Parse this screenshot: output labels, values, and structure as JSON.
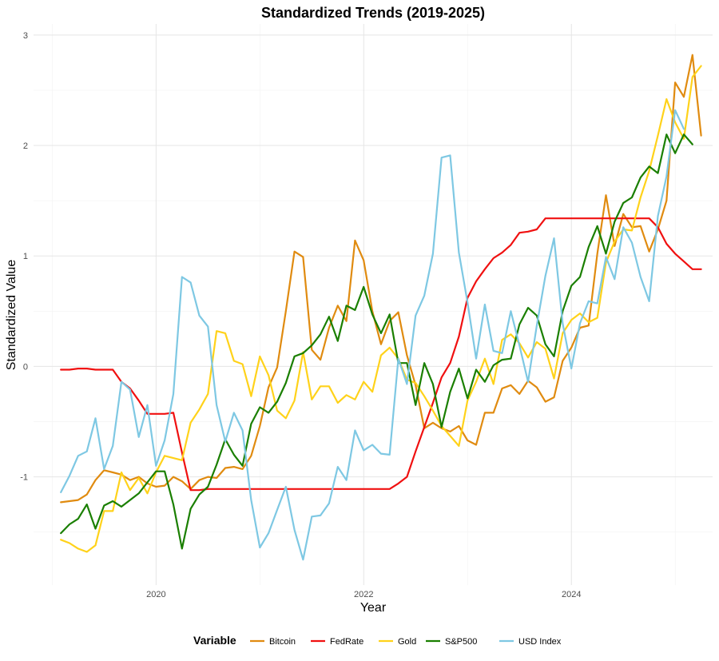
{
  "chart_data": {
    "type": "line",
    "title": "Standardized Trends (2019-2025)",
    "xlabel": "Year",
    "ylabel": "Standardized Value",
    "xlim": [
      2018.82,
      2025.36
    ],
    "ylim": [
      -1.98,
      3.1
    ],
    "x_ticks": [
      2020,
      2022,
      2024
    ],
    "x_tick_labels": [
      "2020",
      "2022",
      "2024"
    ],
    "y_ticks": [
      -1,
      0,
      1,
      2,
      3
    ],
    "y_tick_labels": [
      "-1",
      "0",
      "1",
      "2",
      "3"
    ],
    "grid": true,
    "legend": {
      "title": "Variable",
      "position": "bottom"
    },
    "x_start": 2019.083,
    "x_step": 0.08333,
    "series": [
      {
        "name": "Bitcoin",
        "color": "#E08B10",
        "values": [
          -1.23,
          -1.22,
          -1.21,
          -1.16,
          -1.03,
          -0.94,
          -0.96,
          -0.98,
          -1.03,
          -1.0,
          -1.06,
          -1.09,
          -1.08,
          -1.0,
          -1.04,
          -1.11,
          -1.03,
          -1.0,
          -1.01,
          -0.92,
          -0.91,
          -0.93,
          -0.81,
          -0.54,
          -0.19,
          -0.01,
          0.5,
          1.04,
          0.99,
          0.15,
          0.06,
          0.35,
          0.55,
          0.41,
          1.14,
          0.96,
          0.5,
          0.2,
          0.41,
          0.49,
          0.1,
          -0.17,
          -0.56,
          -0.51,
          -0.56,
          -0.59,
          -0.54,
          -0.67,
          -0.71,
          -0.42,
          -0.42,
          -0.2,
          -0.17,
          -0.25,
          -0.13,
          -0.19,
          -0.32,
          -0.28,
          0.05,
          0.17,
          0.35,
          0.37,
          1.02,
          1.55,
          1.09,
          1.38,
          1.26,
          1.27,
          1.04,
          1.24,
          1.5,
          2.57,
          2.44,
          2.82,
          2.09
        ]
      },
      {
        "name": "FedRate",
        "color": "#F01010",
        "values": [
          -0.03,
          -0.03,
          -0.02,
          -0.02,
          -0.03,
          -0.03,
          -0.03,
          -0.14,
          -0.2,
          -0.31,
          -0.43,
          -0.43,
          -0.43,
          -0.42,
          -0.78,
          -1.12,
          -1.12,
          -1.11,
          -1.11,
          -1.11,
          -1.11,
          -1.11,
          -1.11,
          -1.11,
          -1.11,
          -1.11,
          -1.11,
          -1.11,
          -1.11,
          -1.11,
          -1.11,
          -1.11,
          -1.11,
          -1.11,
          -1.11,
          -1.11,
          -1.11,
          -1.11,
          -1.11,
          -1.06,
          -1.0,
          -0.77,
          -0.55,
          -0.33,
          -0.1,
          0.03,
          0.27,
          0.62,
          0.77,
          0.88,
          0.98,
          1.03,
          1.1,
          1.21,
          1.22,
          1.24,
          1.34,
          1.34,
          1.34,
          1.34,
          1.34,
          1.34,
          1.34,
          1.34,
          1.34,
          1.34,
          1.34,
          1.34,
          1.34,
          1.26,
          1.11,
          1.02,
          0.95,
          0.88,
          0.88
        ]
      },
      {
        "name": "Gold",
        "color": "#FFD21A",
        "values": [
          -1.57,
          -1.6,
          -1.65,
          -1.68,
          -1.62,
          -1.31,
          -1.31,
          -0.96,
          -1.12,
          -1.01,
          -1.15,
          -0.96,
          -0.81,
          -0.83,
          -0.85,
          -0.51,
          -0.39,
          -0.25,
          0.32,
          0.3,
          0.05,
          0.02,
          -0.27,
          0.09,
          -0.08,
          -0.4,
          -0.47,
          -0.31,
          0.13,
          -0.3,
          -0.18,
          -0.18,
          -0.33,
          -0.26,
          -0.3,
          -0.14,
          -0.23,
          0.1,
          0.17,
          0.07,
          -0.12,
          -0.15,
          -0.27,
          -0.4,
          -0.54,
          -0.63,
          -0.72,
          -0.31,
          -0.14,
          0.07,
          -0.16,
          0.24,
          0.29,
          0.21,
          0.08,
          0.22,
          0.16,
          -0.11,
          0.3,
          0.42,
          0.48,
          0.4,
          0.44,
          0.94,
          1.13,
          1.24,
          1.23,
          1.53,
          1.77,
          2.09,
          2.42,
          2.21,
          2.06,
          2.62,
          2.72
        ]
      },
      {
        "name": "S&P500",
        "color": "#1A7F00",
        "values": [
          -1.51,
          -1.43,
          -1.38,
          -1.25,
          -1.47,
          -1.26,
          -1.22,
          -1.27,
          -1.21,
          -1.15,
          -1.05,
          -0.95,
          -0.95,
          -1.25,
          -1.65,
          -1.29,
          -1.16,
          -1.09,
          -0.89,
          -0.66,
          -0.8,
          -0.9,
          -0.52,
          -0.37,
          -0.42,
          -0.32,
          -0.15,
          0.09,
          0.12,
          0.19,
          0.29,
          0.45,
          0.23,
          0.55,
          0.51,
          0.72,
          0.47,
          0.3,
          0.47,
          0.03,
          0.03,
          -0.35,
          0.03,
          -0.16,
          -0.55,
          -0.23,
          -0.02,
          -0.29,
          -0.03,
          -0.14,
          0.01,
          0.06,
          0.07,
          0.38,
          0.53,
          0.46,
          0.2,
          0.09,
          0.5,
          0.73,
          0.81,
          1.08,
          1.27,
          1.02,
          1.31,
          1.48,
          1.53,
          1.71,
          1.81,
          1.75,
          2.1,
          1.93,
          2.1,
          2.01
        ]
      },
      {
        "name": "USD Index",
        "color": "#7EC8E3",
        "values": [
          -1.14,
          -0.99,
          -0.81,
          -0.77,
          -0.47,
          -0.93,
          -0.72,
          -0.14,
          -0.21,
          -0.64,
          -0.35,
          -0.9,
          -0.67,
          -0.25,
          0.81,
          0.76,
          0.46,
          0.36,
          -0.35,
          -0.68,
          -0.42,
          -0.58,
          -1.21,
          -1.64,
          -1.51,
          -1.3,
          -1.09,
          -1.48,
          -1.75,
          -1.36,
          -1.35,
          -1.24,
          -0.91,
          -1.03,
          -0.58,
          -0.76,
          -0.71,
          -0.79,
          -0.8,
          0.07,
          -0.16,
          0.46,
          0.64,
          1.02,
          1.89,
          1.91,
          1.03,
          0.58,
          0.07,
          0.56,
          0.14,
          0.12,
          0.5,
          0.19,
          -0.14,
          0.37,
          0.82,
          1.16,
          0.39,
          -0.02,
          0.39,
          0.59,
          0.57,
          0.99,
          0.79,
          1.26,
          1.12,
          0.81,
          0.59,
          1.36,
          1.72,
          2.32,
          2.15
        ]
      }
    ]
  }
}
